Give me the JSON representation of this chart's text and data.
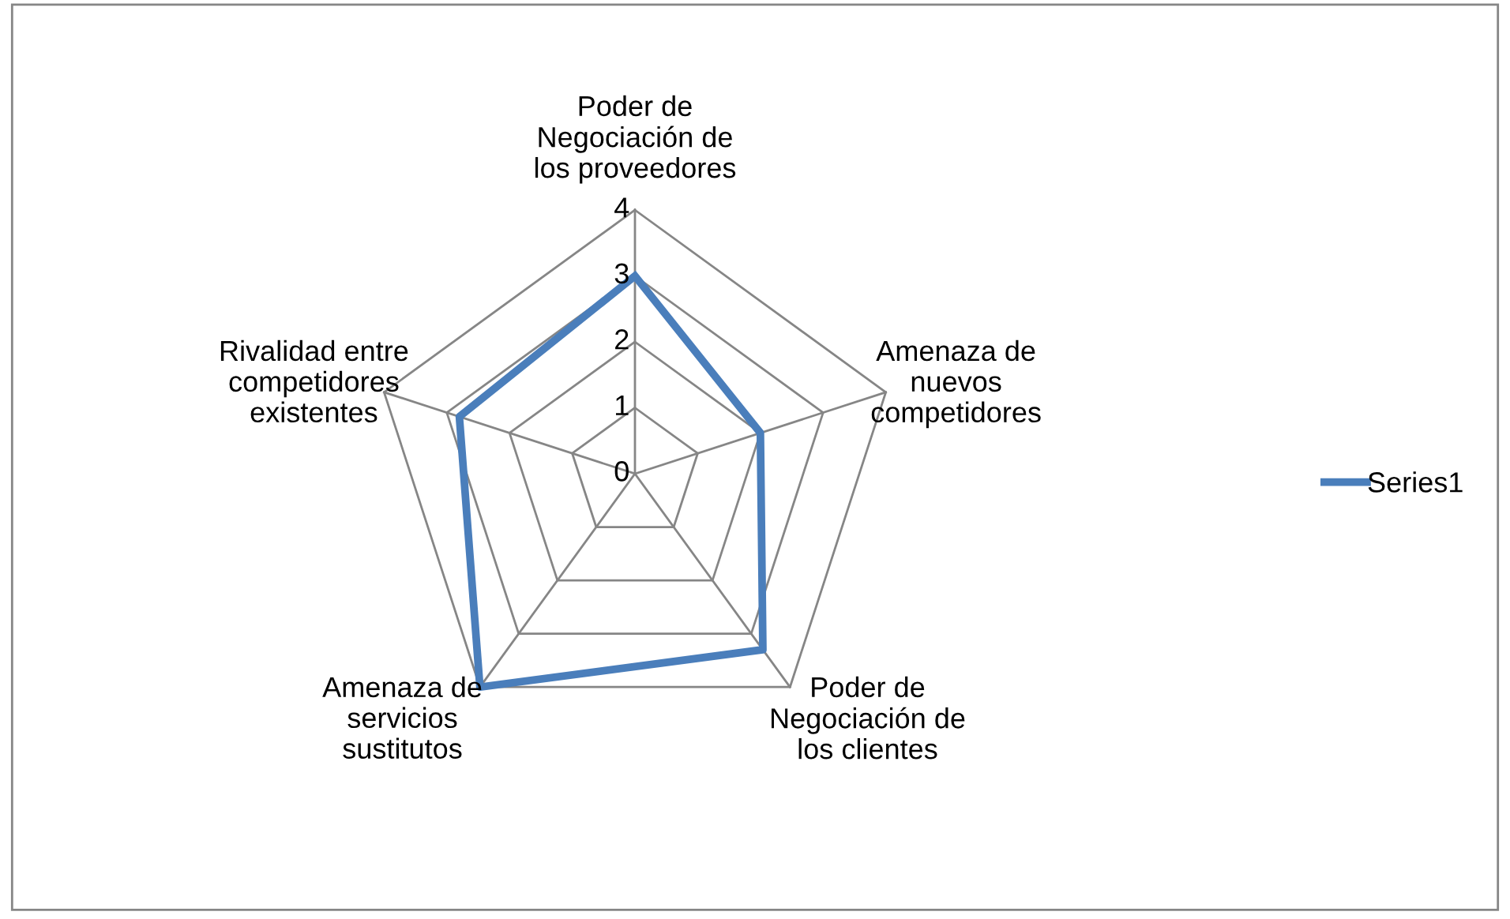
{
  "chart_data": {
    "type": "radar",
    "categories": [
      "Poder de\nNegociación de\nlos proveedores",
      "Amenaza de\nnuevos\ncompetidores",
      "Poder de\nNegociación de\nlos clientes",
      "Amenaza de\nservicios\nsustitutos",
      "Rivalidad entre\ncompetidores\nexistentes"
    ],
    "series": [
      {
        "name": "Series1",
        "color": "#4a7ebb",
        "values": [
          3,
          2,
          3.3,
          4,
          2.8
        ]
      }
    ],
    "ylim": [
      0,
      4
    ],
    "yticks": [
      0,
      1,
      2,
      3,
      4
    ],
    "grid": true,
    "legend": "right",
    "marker": "none"
  }
}
